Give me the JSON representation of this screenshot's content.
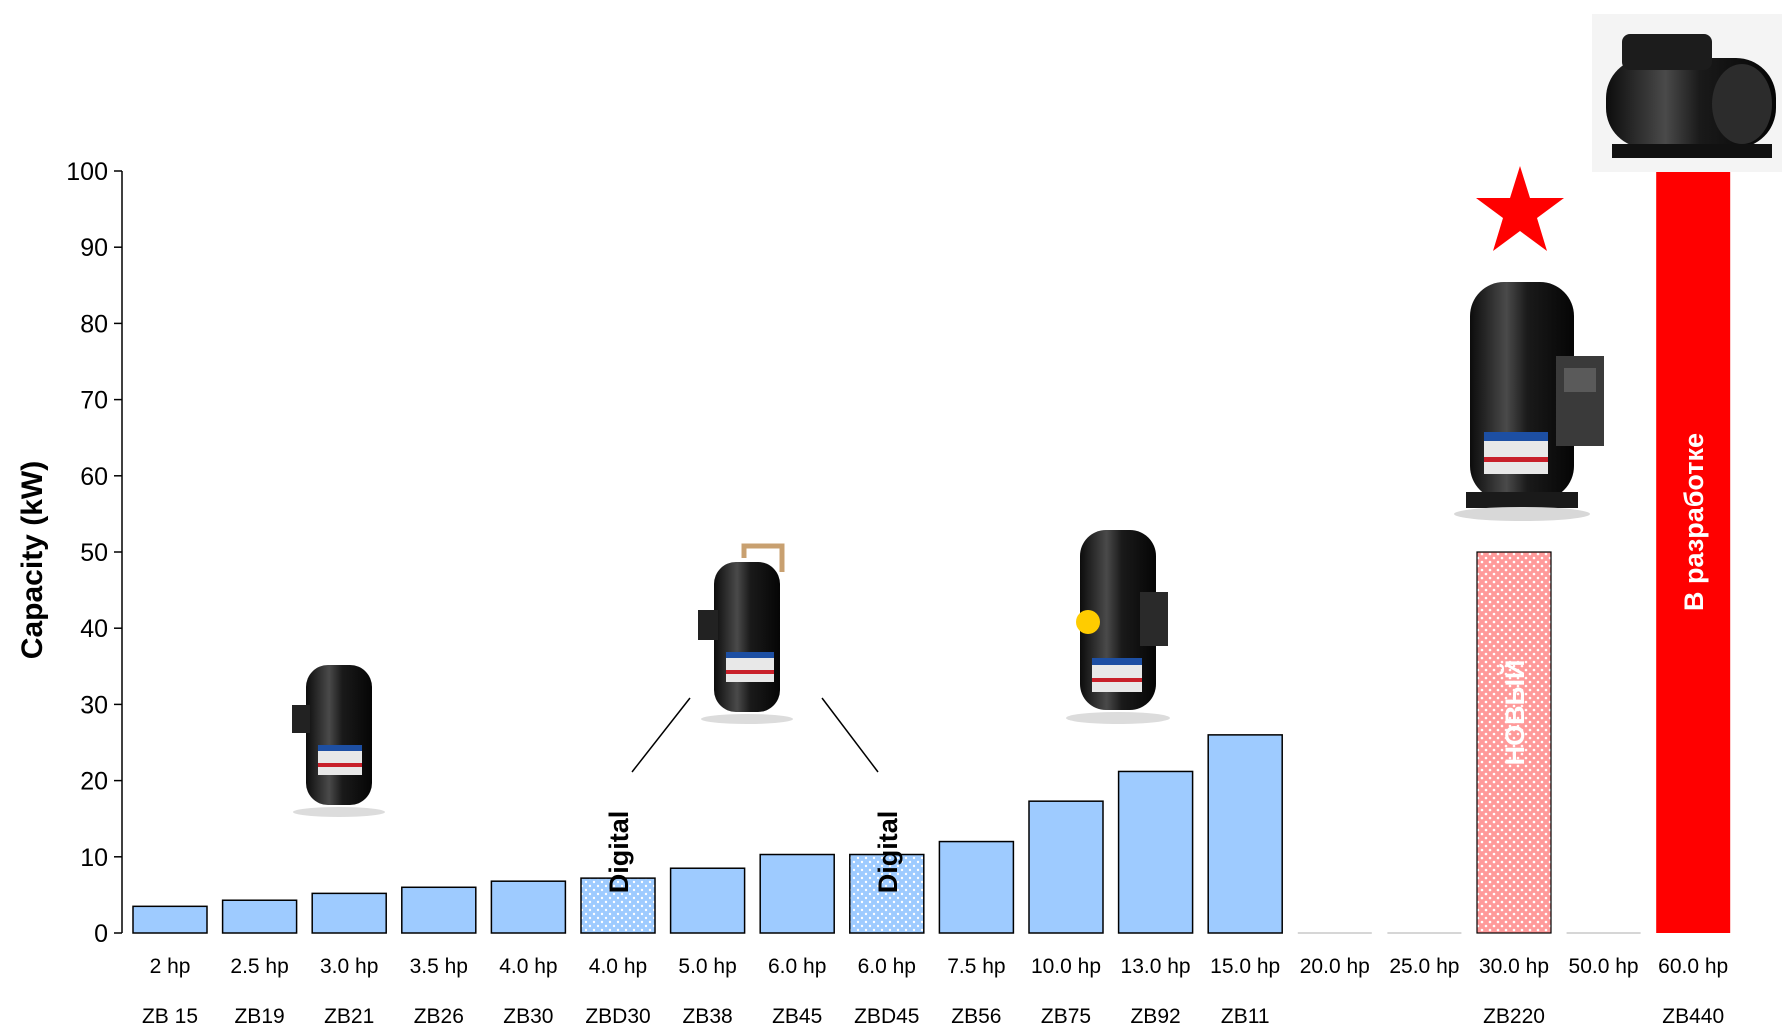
{
  "chart_data": {
    "type": "bar",
    "ylabel": "Capacity (kW)",
    "ylim": [
      0,
      100
    ],
    "yticks": [
      0,
      10,
      20,
      30,
      40,
      50,
      60,
      70,
      80,
      90,
      100
    ],
    "categories": [
      "2 hp",
      "2.5 hp",
      "3.0 hp",
      "3.5 hp",
      "4.0 hp",
      "4.0 hp",
      "5.0 hp",
      "6.0 hp",
      "6.0 hp",
      "7.5 hp",
      "10.0 hp",
      "13.0 hp",
      "15.0 hp",
      "20.0 hp",
      "25.0 hp",
      "30.0 hp",
      "50.0 hp",
      "60.0 hp"
    ],
    "models": [
      "ZB 15",
      "ZB19",
      "ZB21",
      "ZB26",
      "ZB30",
      "ZBD30",
      "ZB38",
      "ZB45",
      "ZBD45",
      "ZB56",
      "ZB75",
      "ZB92",
      "ZB11",
      "",
      "",
      "ZB220",
      "",
      "ZB440"
    ],
    "values": [
      3.5,
      4.3,
      5.2,
      6.0,
      6.8,
      7.2,
      8.5,
      10.3,
      10.3,
      12.0,
      17.3,
      21.2,
      26.0,
      0,
      0,
      50,
      0,
      100
    ],
    "bar_styles": [
      "solid",
      "solid",
      "solid",
      "solid",
      "solid",
      "dotted",
      "solid",
      "solid",
      "dotted",
      "solid",
      "solid",
      "solid",
      "solid",
      "none",
      "none",
      "new",
      "none",
      "dev"
    ],
    "bar_labels": [
      "",
      "",
      "",
      "",
      "",
      "Digital",
      "",
      "",
      "Digital",
      "",
      "",
      "",
      "",
      "",
      "",
      "НОВЫЙ",
      "",
      "В разработке"
    ],
    "colors": {
      "standard": "#9ecbff",
      "new": "#ff9a9a",
      "dev": "#ff0000",
      "star": "#ff0000"
    }
  },
  "icons": [
    "compressor-image-small",
    "compressor-image-digital",
    "compressor-image-medium",
    "compressor-image-zb220",
    "compressor-image-zb440",
    "star-icon"
  ]
}
